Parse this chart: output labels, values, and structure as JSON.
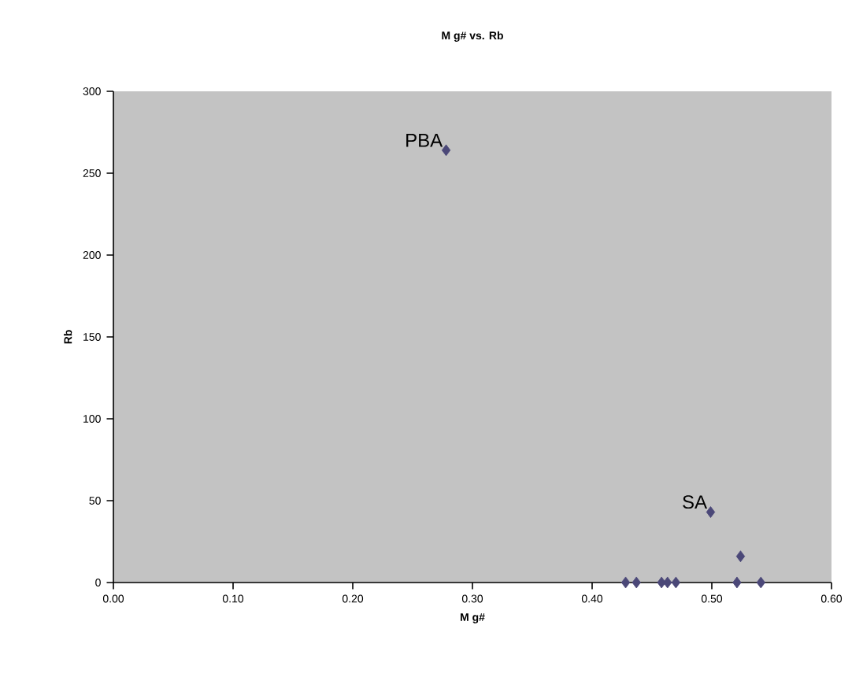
{
  "chart_data": {
    "type": "scatter",
    "title": "M g#  vs. Rb",
    "xlabel": "M g#",
    "ylabel": "Rb",
    "x": [
      0.278,
      0.499,
      0.524,
      0.428,
      0.437,
      0.458,
      0.463,
      0.47,
      0.521,
      0.541
    ],
    "series": [
      {
        "color": "#4b4878",
        "values": [
          264,
          43,
          16,
          0,
          0,
          0,
          0,
          0,
          0,
          0
        ]
      }
    ],
    "xlim": [
      0,
      0.6
    ],
    "xticks": [
      {
        "value": 0,
        "label": "0.00"
      },
      {
        "value": 0.1,
        "label": "0.10"
      },
      {
        "value": 0.2,
        "label": "0.20"
      },
      {
        "value": 0.3,
        "label": "0.30"
      },
      {
        "value": 0.4,
        "label": "0.40"
      },
      {
        "value": 0.5,
        "label": "0.50"
      },
      {
        "value": 0.6,
        "label": "0.60"
      }
    ],
    "ylim": [
      0,
      300
    ],
    "yticks": [
      0,
      50,
      100,
      150,
      200,
      250,
      300
    ],
    "annotations": [
      {
        "text": "PBA",
        "x": 0.278,
        "y": 264
      },
      {
        "text": "SA",
        "x": 0.499,
        "y": 43
      }
    ],
    "grid": false,
    "marker": "diamond"
  }
}
